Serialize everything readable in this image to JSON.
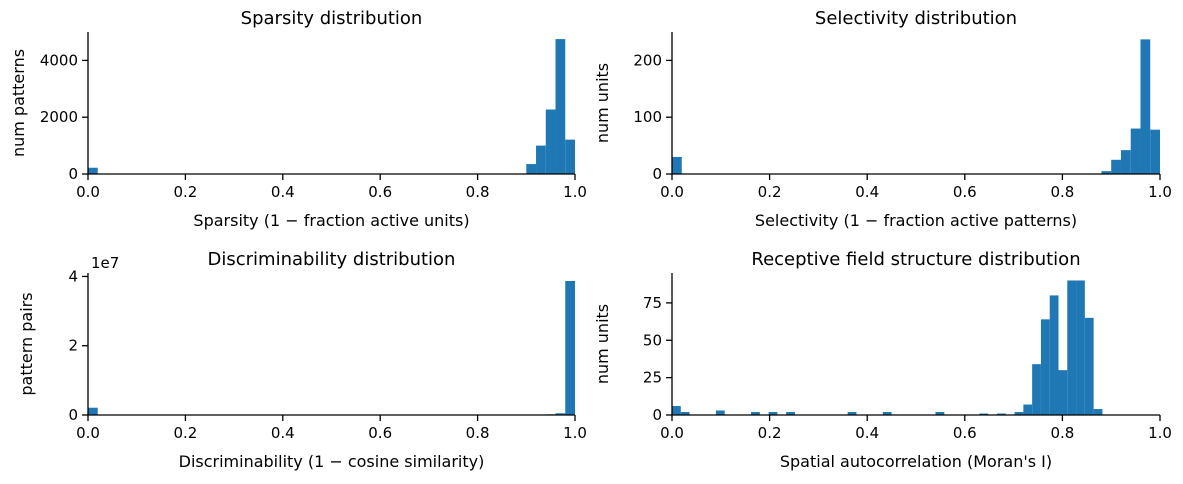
{
  "chart_data": [
    {
      "type": "bar",
      "title": "Sparsity distribution",
      "xlabel": "Sparsity (1 −  fraction active units)",
      "ylabel": "num patterns",
      "xlim": [
        0,
        1
      ],
      "ylim": [
        0,
        5000
      ],
      "xticks": [
        "0.0",
        "0.2",
        "0.4",
        "0.6",
        "0.8",
        "1.0"
      ],
      "yticks": [
        "0",
        "2000",
        "4000"
      ],
      "ytick_values": [
        0,
        2000,
        4000
      ],
      "offset_text": "",
      "bin_width": 0.02,
      "bins": [
        {
          "x": 0.0,
          "value": 220
        },
        {
          "x": 0.9,
          "value": 350
        },
        {
          "x": 0.92,
          "value": 1000
        },
        {
          "x": 0.94,
          "value": 2270
        },
        {
          "x": 0.96,
          "value": 4750
        },
        {
          "x": 0.98,
          "value": 1210
        }
      ]
    },
    {
      "type": "bar",
      "title": "Selectivity distribution",
      "xlabel": "Selectivity (1 −  fraction active patterns)",
      "ylabel": "num units",
      "xlim": [
        0,
        1
      ],
      "ylim": [
        0,
        250
      ],
      "xticks": [
        "0.0",
        "0.2",
        "0.4",
        "0.6",
        "0.8",
        "1.0"
      ],
      "yticks": [
        "0",
        "100",
        "200"
      ],
      "ytick_values": [
        0,
        100,
        200
      ],
      "offset_text": "",
      "bin_width": 0.02,
      "bins": [
        {
          "x": 0.0,
          "value": 30
        },
        {
          "x": 0.88,
          "value": 5
        },
        {
          "x": 0.9,
          "value": 25
        },
        {
          "x": 0.92,
          "value": 42
        },
        {
          "x": 0.94,
          "value": 80
        },
        {
          "x": 0.96,
          "value": 237
        },
        {
          "x": 0.98,
          "value": 78
        }
      ]
    },
    {
      "type": "bar",
      "title": "Discriminability distribution",
      "xlabel": "Discriminability (1 −  cosine similarity)",
      "ylabel": "pattern pairs",
      "xlim": [
        0,
        1
      ],
      "ylim": [
        0,
        41000000
      ],
      "xticks": [
        "0.0",
        "0.2",
        "0.4",
        "0.6",
        "0.8",
        "1.0"
      ],
      "yticks": [
        "0",
        "2",
        "4"
      ],
      "ytick_values": [
        0,
        20000000,
        40000000
      ],
      "offset_text": "1e7",
      "bin_width": 0.02,
      "bins": [
        {
          "x": 0.0,
          "value": 2100000
        },
        {
          "x": 0.94,
          "value": 200000
        },
        {
          "x": 0.96,
          "value": 500000
        },
        {
          "x": 0.98,
          "value": 38700000
        }
      ]
    },
    {
      "type": "bar",
      "title": "Receptive field structure distribution",
      "xlabel": "Spatial autocorrelation (Moran's I)",
      "ylabel": "num units",
      "xlim": [
        0,
        1
      ],
      "ylim": [
        0,
        95
      ],
      "xticks": [
        "0.0",
        "0.2",
        "0.4",
        "0.6",
        "0.8",
        "1.0"
      ],
      "yticks": [
        "0",
        "25",
        "50",
        "75"
      ],
      "ytick_values": [
        0,
        25,
        50,
        75
      ],
      "offset_text": "",
      "bin_width": 0.018,
      "bins": [
        {
          "x": 0.0,
          "value": 6
        },
        {
          "x": 0.018,
          "value": 2
        },
        {
          "x": 0.09,
          "value": 3
        },
        {
          "x": 0.162,
          "value": 2
        },
        {
          "x": 0.198,
          "value": 2
        },
        {
          "x": 0.234,
          "value": 2
        },
        {
          "x": 0.36,
          "value": 2
        },
        {
          "x": 0.432,
          "value": 2
        },
        {
          "x": 0.54,
          "value": 2
        },
        {
          "x": 0.63,
          "value": 1
        },
        {
          "x": 0.666,
          "value": 1
        },
        {
          "x": 0.702,
          "value": 2
        },
        {
          "x": 0.72,
          "value": 7
        },
        {
          "x": 0.738,
          "value": 34
        },
        {
          "x": 0.756,
          "value": 64
        },
        {
          "x": 0.774,
          "value": 80
        },
        {
          "x": 0.792,
          "value": 30
        },
        {
          "x": 0.81,
          "value": 90
        },
        {
          "x": 0.828,
          "value": 90
        },
        {
          "x": 0.846,
          "value": 65
        },
        {
          "x": 0.864,
          "value": 4
        }
      ]
    }
  ]
}
